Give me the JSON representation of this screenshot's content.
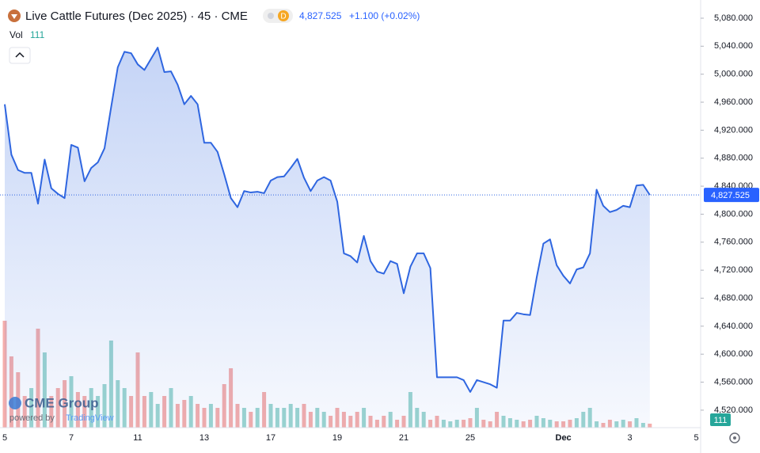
{
  "chart_data": {
    "type": "line",
    "title": "Live Cattle Futures (Dec 2025) · 45 · CME",
    "badge": "D",
    "last_price_label": "4,827.525",
    "change_text": "+1.100 (+0.02%)",
    "color": "#2f66e0",
    "categories": [
      "5",
      null,
      null,
      null,
      null,
      null,
      null,
      null,
      null,
      null,
      "7",
      null,
      null,
      null,
      null,
      null,
      null,
      null,
      null,
      null,
      "11",
      null,
      null,
      null,
      null,
      null,
      null,
      null,
      null,
      null,
      "13",
      null,
      null,
      null,
      null,
      null,
      null,
      null,
      null,
      null,
      "17",
      null,
      null,
      null,
      null,
      null,
      null,
      null,
      null,
      null,
      "19",
      null,
      null,
      null,
      null,
      null,
      null,
      null,
      null,
      null,
      "21",
      null,
      null,
      null,
      null,
      null,
      null,
      null,
      null,
      null,
      "25",
      null,
      null,
      null,
      null,
      null,
      null,
      null,
      null,
      null,
      null,
      null,
      null,
      null,
      "Dec",
      null,
      null,
      null,
      null,
      null,
      null,
      null,
      null,
      null,
      "3",
      null,
      null,
      null,
      null,
      null,
      null,
      null,
      null,
      null,
      "5"
    ],
    "values": [
      4957,
      4885,
      4863,
      4859,
      4859,
      4815,
      4878,
      4837,
      4829,
      4823,
      4899,
      4895,
      4847,
      4866,
      4874,
      4894,
      4953,
      5010,
      5032,
      5030,
      5014,
      5006,
      5022,
      5038,
      5003,
      5004,
      4985,
      4957,
      4969,
      4957,
      4902,
      4902,
      4889,
      4857,
      4823,
      4810,
      4833,
      4831,
      4832,
      4830,
      4848,
      4853,
      4854,
      4866,
      4879,
      4852,
      4833,
      4848,
      4853,
      4848,
      4818,
      4744,
      4740,
      4731,
      4769,
      4733,
      4718,
      4715,
      4733,
      4729,
      4687,
      4725,
      4744,
      4744,
      4723,
      4567,
      4567,
      4567,
      4567,
      4563,
      4546,
      4563,
      4560,
      4557,
      4552,
      4648,
      4648,
      4659,
      4657,
      4656,
      4710,
      4758,
      4764,
      4727,
      4712,
      4701,
      4721,
      4724,
      4744,
      4835,
      4812,
      4803,
      4806,
      4812,
      4810,
      4841,
      4842,
      4827.525,
      null,
      null,
      null,
      null,
      null,
      null,
      null
    ],
    "volume": {
      "name": "Vol",
      "up_color": "#9dd6cf",
      "down_color": "#f5aeab",
      "values": [
        2970,
        1980,
        1540,
        880,
        1100,
        2750,
        2090,
        880,
        1100,
        1320,
        1430,
        990,
        880,
        1100,
        880,
        1210,
        2420,
        1320,
        1100,
        880,
        2090,
        880,
        990,
        660,
        880,
        1100,
        660,
        770,
        880,
        660,
        550,
        660,
        550,
        1210,
        1650,
        660,
        550,
        440,
        550,
        990,
        660,
        550,
        550,
        660,
        550,
        660,
        440,
        550,
        440,
        330,
        550,
        440,
        330,
        440,
        550,
        330,
        220,
        330,
        440,
        220,
        330,
        990,
        550,
        440,
        220,
        330,
        220,
        176,
        220,
        220,
        264,
        550,
        220,
        176,
        440,
        330,
        264,
        220,
        176,
        220,
        330,
        264,
        220,
        176,
        176,
        220,
        264,
        440,
        550,
        176,
        132,
        220,
        176,
        220,
        176,
        264,
        132,
        111,
        null,
        null,
        null,
        null,
        null,
        null,
        null
      ]
    },
    "ylim": [
      4495,
      5106
    ],
    "yticks": [
      {
        "value": 4520,
        "label": "4,520.000"
      },
      {
        "value": 4560,
        "label": "4,560.000"
      },
      {
        "value": 4600,
        "label": "4,600.000"
      },
      {
        "value": 4640,
        "label": "4,640.000"
      },
      {
        "value": 4680,
        "label": "4,680.000"
      },
      {
        "value": 4720,
        "label": "4,720.000"
      },
      {
        "value": 4760,
        "label": "4,760.000"
      },
      {
        "value": 4800,
        "label": "4,800.000"
      },
      {
        "value": 4840,
        "label": "4,840.000"
      },
      {
        "value": 4880,
        "label": "4,880.000"
      },
      {
        "value": 4920,
        "label": "4,920.000"
      },
      {
        "value": 4960,
        "label": "4,960.000"
      },
      {
        "value": 5000,
        "label": "5,000.000"
      },
      {
        "value": 5040,
        "label": "5,040.000"
      },
      {
        "value": 5080,
        "label": "5,080.000"
      }
    ],
    "grid": false,
    "watermark": {
      "brand": "CME Group",
      "powered": "powered by",
      "platform": "TradingView"
    }
  }
}
